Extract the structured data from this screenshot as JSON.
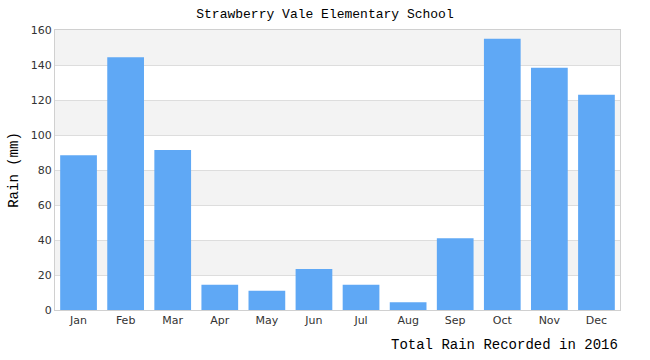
{
  "chart_data": {
    "type": "bar",
    "title": "Strawberry Vale Elementary School",
    "xlabel": "Total Rain Recorded in 2016",
    "ylabel": "Rain (mm)",
    "categories": [
      "Jan",
      "Feb",
      "Mar",
      "Apr",
      "May",
      "Jun",
      "Jul",
      "Aug",
      "Sep",
      "Oct",
      "Nov",
      "Dec"
    ],
    "values": [
      88.5,
      144.5,
      91.5,
      14.5,
      11,
      23.5,
      14.5,
      4.5,
      41,
      155,
      138.5,
      123
    ],
    "color": "#5fa8f5",
    "ylim": [
      0,
      160
    ],
    "yticks": [
      0,
      20,
      40,
      60,
      80,
      100,
      120,
      140,
      160
    ],
    "grid": true
  }
}
